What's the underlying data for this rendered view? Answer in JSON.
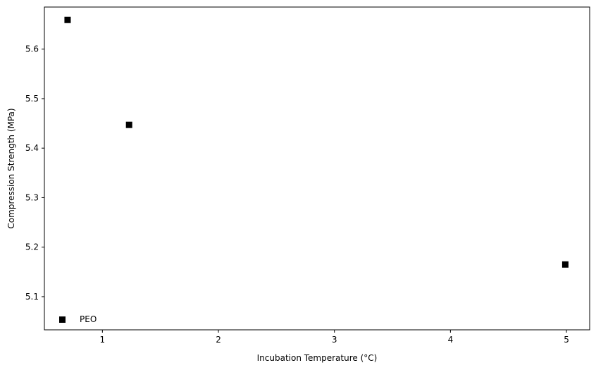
{
  "chart_data": {
    "type": "scatter",
    "title": "",
    "xlabel": "Incubation Temperature (°C)",
    "ylabel": "Compression Strength (MPa)",
    "xlim": [
      0.5,
      5.2
    ],
    "ylim": [
      5.033,
      5.685
    ],
    "xticks": [
      1,
      2,
      3,
      4,
      5
    ],
    "yticks": [
      5.1,
      5.2,
      5.3,
      5.4,
      5.5,
      5.6
    ],
    "xtick_labels": [
      "1",
      "2",
      "3",
      "4",
      "5"
    ],
    "ytick_labels": [
      "5.1",
      "5.2",
      "5.3",
      "5.4",
      "5.5",
      "5.6"
    ],
    "grid": false,
    "legend": {
      "position": "lower-left"
    },
    "series": [
      {
        "name": "PEO",
        "marker": "square",
        "color": "#000000",
        "x": [
          0.7,
          1.23,
          4.99
        ],
        "y": [
          5.659,
          5.447,
          5.165
        ]
      }
    ]
  }
}
